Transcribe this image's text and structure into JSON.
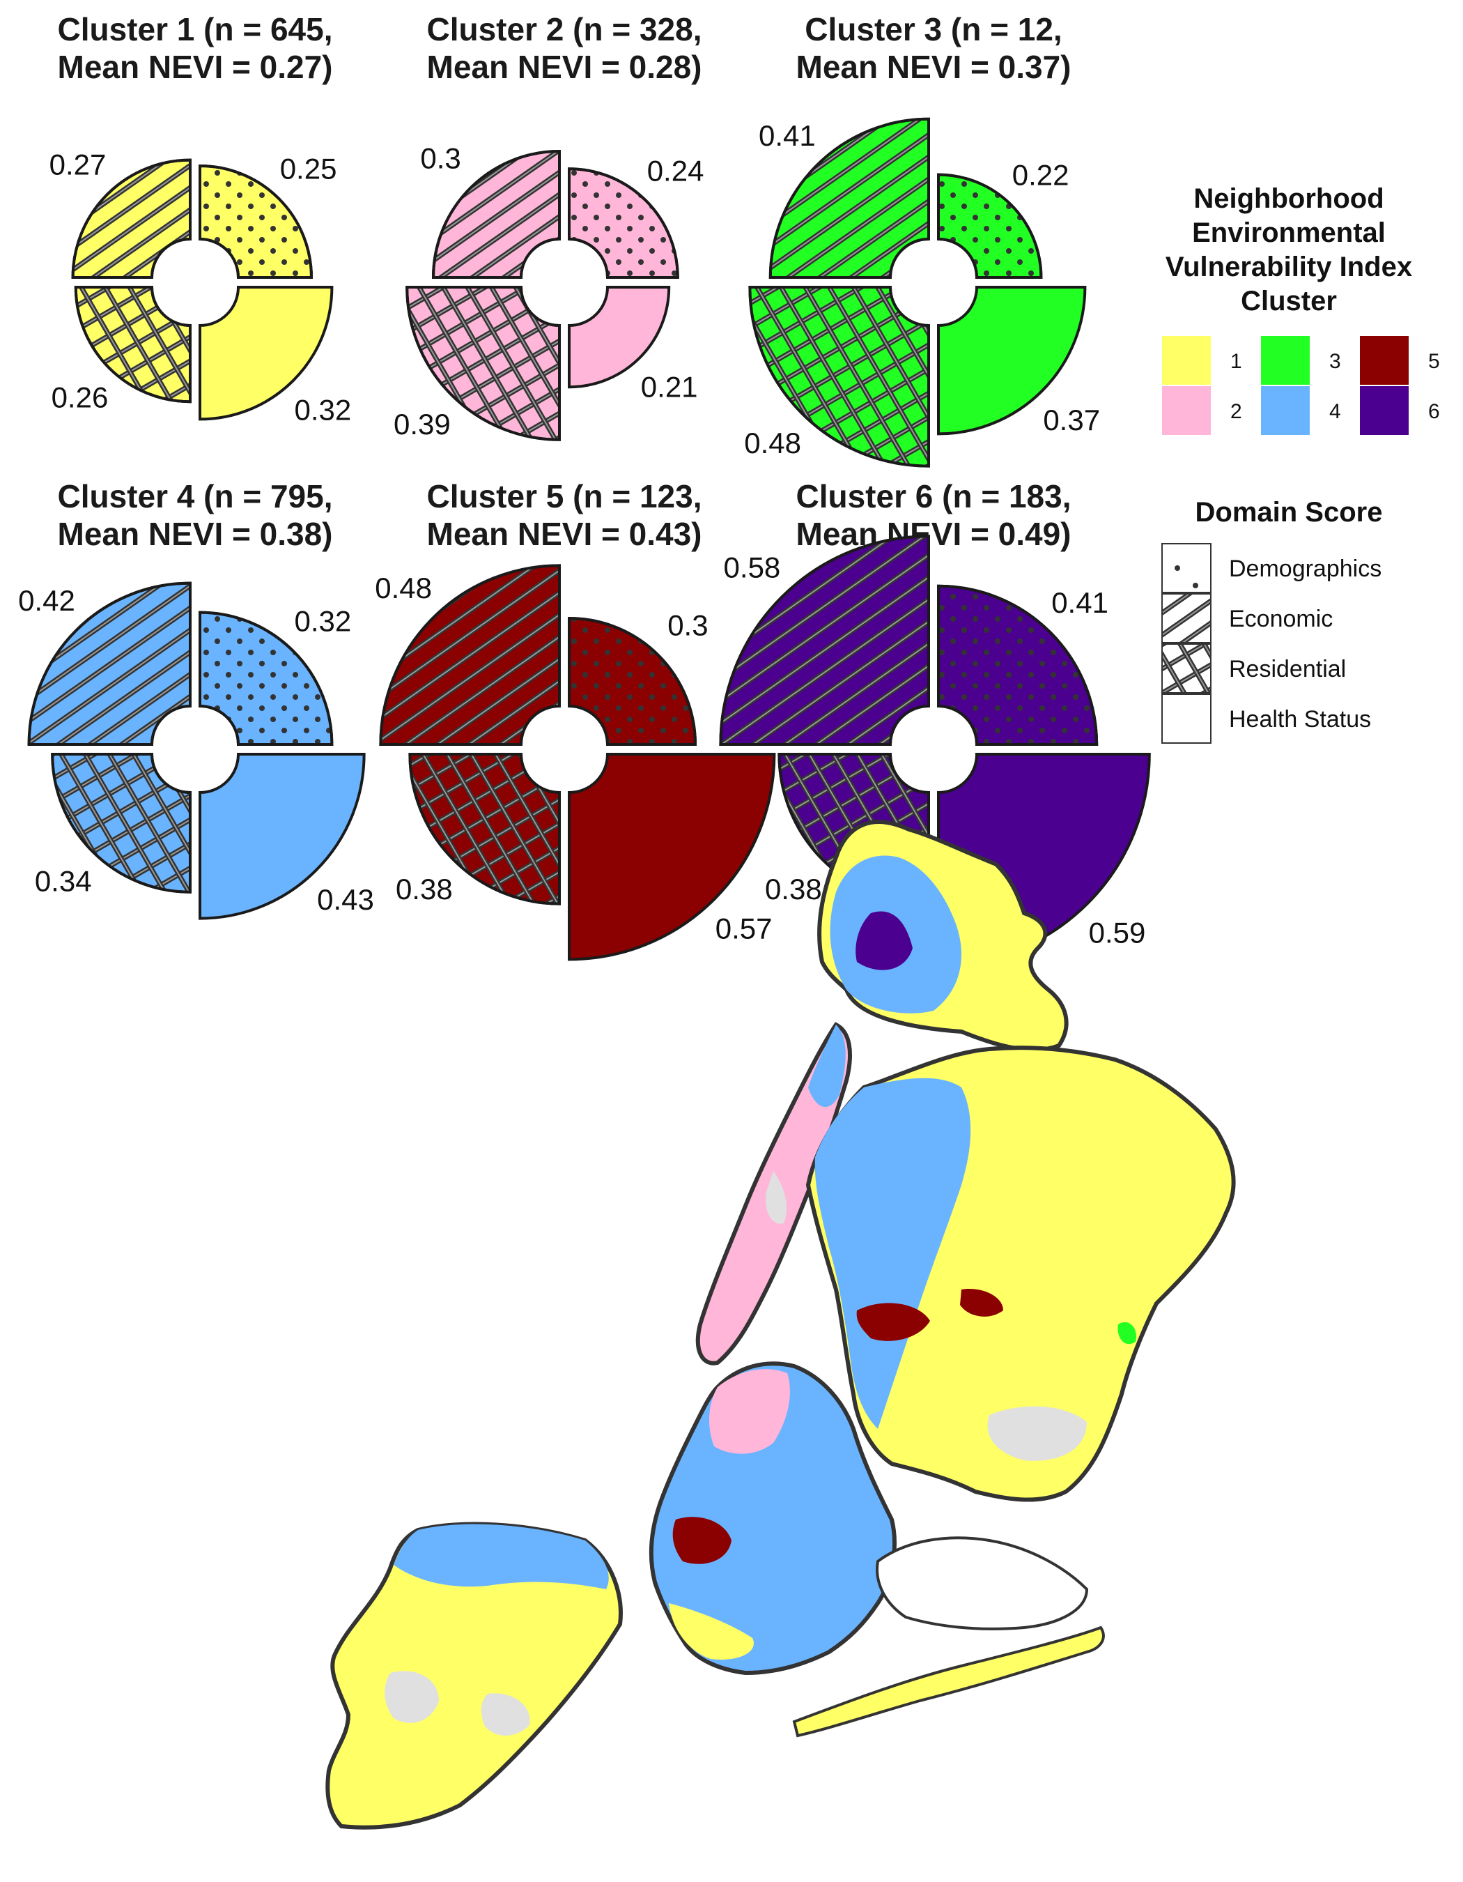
{
  "chart_data": {
    "type": "polar-bar",
    "description_free": true,
    "domains": [
      "Demographics",
      "Economic",
      "Residential",
      "Health Status"
    ],
    "panels": [
      {
        "cluster": 1,
        "title_line1": "Cluster 1 (n = 645,",
        "title_line2": "Mean NEVI = 0.27)",
        "color": "#ffff66",
        "values": {
          "Demographics": 0.25,
          "Economic": 0.27,
          "Residential": 0.26,
          "Health Status": 0.32
        },
        "labels": {
          "Demographics": "0.25",
          "Economic": "0.27",
          "Residential": "0.26",
          "Health Status": "0.32"
        }
      },
      {
        "cluster": 2,
        "title_line1": "Cluster 2 (n = 328,",
        "title_line2": "Mean NEVI = 0.28)",
        "color": "#ffb6d9",
        "values": {
          "Demographics": 0.24,
          "Economic": 0.3,
          "Residential": 0.39,
          "Health Status": 0.21
        },
        "labels": {
          "Demographics": "0.24",
          "Economic": "0.3",
          "Residential": "0.39",
          "Health Status": "0.21"
        }
      },
      {
        "cluster": 3,
        "title_line1": "Cluster 3 (n = 12,",
        "title_line2": "Mean NEVI = 0.37)",
        "color": "#22ff22",
        "values": {
          "Demographics": 0.22,
          "Economic": 0.41,
          "Residential": 0.48,
          "Health Status": 0.37
        },
        "labels": {
          "Demographics": "0.22",
          "Economic": "0.41",
          "Residential": "0.48",
          "Health Status": "0.37"
        }
      },
      {
        "cluster": 4,
        "title_line1": "Cluster 4 (n = 795,",
        "title_line2": "Mean NEVI = 0.38)",
        "color": "#6ab4ff",
        "values": {
          "Demographics": 0.32,
          "Economic": 0.42,
          "Residential": 0.34,
          "Health Status": 0.43
        },
        "labels": {
          "Demographics": "0.32",
          "Economic": "0.42",
          "Residential": "0.34",
          "Health Status": "0.43"
        }
      },
      {
        "cluster": 5,
        "title_line1": "Cluster 5 (n = 123,",
        "title_line2": "Mean NEVI = 0.43)",
        "color": "#8b0000",
        "values": {
          "Demographics": 0.3,
          "Economic": 0.48,
          "Residential": 0.38,
          "Health Status": 0.57
        },
        "labels": {
          "Demographics": "0.3",
          "Economic": "0.48",
          "Residential": "0.38",
          "Health Status": "0.57"
        }
      },
      {
        "cluster": 6,
        "title_line1": "Cluster 6 (n = 183,",
        "title_line2": "Mean NEVI = 0.49)",
        "color": "#4b0090",
        "values": {
          "Demographics": 0.41,
          "Economic": 0.58,
          "Residential": 0.38,
          "Health Status": 0.59
        },
        "labels": {
          "Demographics": "0.41",
          "Economic": "0.58",
          "Residential": "0.38",
          "Health Status": "0.59"
        }
      }
    ],
    "legend_cluster": {
      "title_lines": [
        "Neighborhood",
        "Environmental",
        "Vulnerability Index",
        "Cluster"
      ],
      "items": [
        {
          "label": "1",
          "color": "#ffff66"
        },
        {
          "label": "2",
          "color": "#ffb6d9"
        },
        {
          "label": "3",
          "color": "#22ff22"
        },
        {
          "label": "4",
          "color": "#6ab4ff"
        },
        {
          "label": "5",
          "color": "#8b0000"
        },
        {
          "label": "6",
          "color": "#4b0090"
        }
      ]
    },
    "legend_domain": {
      "title": "Domain Score",
      "items": [
        "Demographics",
        "Economic",
        "Residential",
        "Health Status"
      ]
    },
    "map": {
      "region": "New York City census tracts colored by cluster",
      "no_data_color": "#e0e0e0"
    }
  }
}
